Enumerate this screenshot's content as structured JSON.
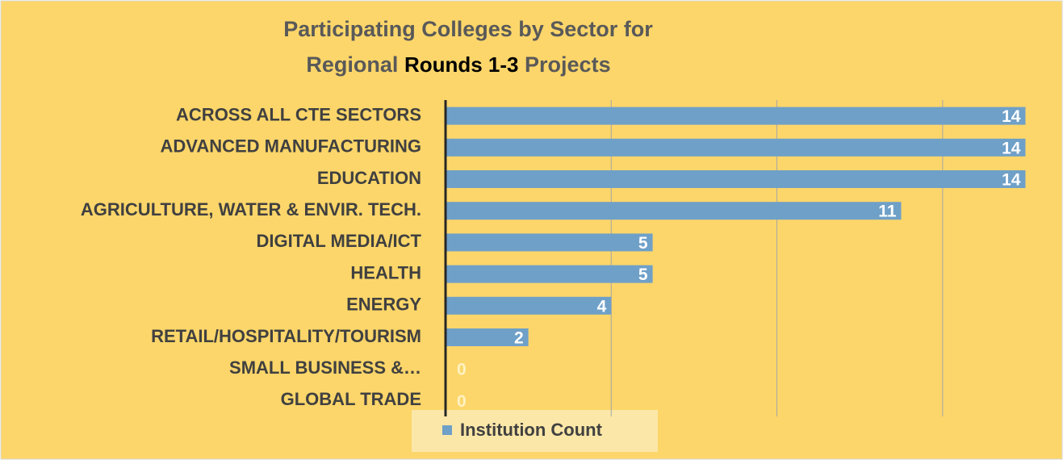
{
  "chart_data": {
    "type": "bar",
    "orientation": "horizontal",
    "title_lines": [
      [
        "Participating Colleges by Sector for"
      ],
      [
        "Regional",
        "Rounds 1-3",
        "Projects"
      ]
    ],
    "categories": [
      "ACROSS  ALL CTE SECTORS",
      "ADVANCED MANUFACTURING",
      "EDUCATION",
      "AGRICULTURE, WATER & ENVIR. TECH.",
      "DIGITAL MEDIA/ICT",
      "HEALTH",
      "ENERGY",
      "RETAIL/HOSPITALITY/TOURISM",
      "SMALL BUSINESS &…",
      "GLOBAL TRADE"
    ],
    "series": [
      {
        "name": "Institution Count",
        "color": "#6fa0c8",
        "values": [
          14,
          14,
          14,
          11,
          5,
          5,
          4,
          2,
          0,
          0
        ]
      }
    ],
    "xlim": [
      0,
      14.4
    ],
    "xticks": [
      0,
      4,
      8,
      12
    ],
    "grid": true,
    "legend": "bottom"
  }
}
